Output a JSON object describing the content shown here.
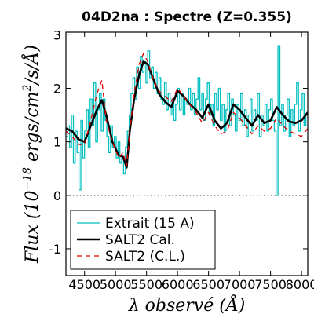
{
  "chart_data": {
    "type": "line",
    "title": "04D2na : Spectre (Z=0.355)",
    "xlabel": "λ observé (Å)",
    "ylabel": "Flux (10^-18 ergs/cm^2/s/Å)",
    "ylabel_parts": {
      "pre": "Flux (10",
      "exp": "−18",
      "post": " ergs/cm",
      "exp2": "2",
      "post2": "/s/Å)"
    },
    "xlim": [
      4200,
      8100
    ],
    "ylim": [
      -1.5,
      3.05
    ],
    "xticks": [
      4500,
      5000,
      5500,
      6000,
      6500,
      7000,
      7500,
      8000
    ],
    "xtick_labels": [
      "4500",
      "5000",
      "5500",
      "6000",
      "6500",
      "7000",
      "7500",
      "8000"
    ],
    "yticks": [
      -1,
      0,
      1,
      2,
      3
    ],
    "ytick_labels": [
      "-1",
      "0",
      "1",
      "2",
      "3"
    ],
    "zero_line": {
      "y": 0,
      "style": "dotted"
    },
    "legend": {
      "position": "lower-left",
      "entries": [
        "Extrait (15 A)",
        "SALT2 Cal.",
        "SALT2 (C.L.)"
      ]
    },
    "series": [
      {
        "name": "Extrait (15 A)",
        "color": "#00bfbf",
        "style": "steps",
        "x": [
          4200,
          4230,
          4260,
          4290,
          4320,
          4350,
          4380,
          4410,
          4440,
          4470,
          4500,
          4530,
          4560,
          4590,
          4620,
          4650,
          4680,
          4710,
          4740,
          4770,
          4800,
          4830,
          4860,
          4890,
          4920,
          4950,
          4980,
          5010,
          5040,
          5070,
          5100,
          5130,
          5160,
          5190,
          5220,
          5250,
          5280,
          5310,
          5340,
          5370,
          5400,
          5430,
          5460,
          5490,
          5520,
          5550,
          5580,
          5610,
          5640,
          5670,
          5700,
          5730,
          5760,
          5790,
          5820,
          5850,
          5880,
          5910,
          5940,
          5970,
          6000,
          6030,
          6060,
          6090,
          6120,
          6150,
          6180,
          6210,
          6240,
          6270,
          6300,
          6330,
          6360,
          6390,
          6420,
          6450,
          6480,
          6510,
          6540,
          6570,
          6600,
          6630,
          6660,
          6690,
          6720,
          6750,
          6780,
          6810,
          6840,
          6870,
          6900,
          6930,
          6960,
          6990,
          7020,
          7050,
          7080,
          7110,
          7140,
          7170,
          7200,
          7230,
          7260,
          7290,
          7320,
          7350,
          7380,
          7410,
          7440,
          7470,
          7500,
          7530,
          7560,
          7590,
          7620,
          7650,
          7680,
          7710,
          7740,
          7770,
          7800,
          7830,
          7860,
          7890,
          7920,
          7950,
          7980,
          8010,
          8040,
          8070
        ],
        "y": [
          1.1,
          1.3,
          0.9,
          1.5,
          0.6,
          1.2,
          0.8,
          0.1,
          1.4,
          0.7,
          1.2,
          1.6,
          0.9,
          1.8,
          1.3,
          2.1,
          1.0,
          1.6,
          1.9,
          1.2,
          1.8,
          1.4,
          1.1,
          0.8,
          1.3,
          0.9,
          1.1,
          0.7,
          1.0,
          0.6,
          0.7,
          0.4,
          0.9,
          1.2,
          1.5,
          1.9,
          2.2,
          1.8,
          2.4,
          2.0,
          2.6,
          2.3,
          2.5,
          2.1,
          2.7,
          2.2,
          2.4,
          2.0,
          2.3,
          1.9,
          2.2,
          1.8,
          1.7,
          2.1,
          1.6,
          1.9,
          1.5,
          1.8,
          1.4,
          1.7,
          2.0,
          1.6,
          1.9,
          1.5,
          1.8,
          1.7,
          2.0,
          1.6,
          1.9,
          1.5,
          1.8,
          2.2,
          1.6,
          1.9,
          1.4,
          1.8,
          2.1,
          1.5,
          1.7,
          1.3,
          1.9,
          1.6,
          2.0,
          1.4,
          1.7,
          1.2,
          1.6,
          1.9,
          1.3,
          1.8,
          1.5,
          1.2,
          1.7,
          1.4,
          1.9,
          1.3,
          1.6,
          1.1,
          1.5,
          1.8,
          1.2,
          1.6,
          1.4,
          1.9,
          1.1,
          1.5,
          1.3,
          1.7,
          1.2,
          1.6,
          1.8,
          1.4,
          1.2,
          0.0,
          2.8,
          1.3,
          1.7,
          1.2,
          1.5,
          1.8,
          1.1,
          1.6,
          1.3,
          1.7,
          2.1,
          1.2,
          1.6,
          1.9,
          1.3,
          1.5
        ]
      },
      {
        "name": "SALT2 Cal.",
        "color": "#000000",
        "style": "line",
        "x": [
          4200,
          4300,
          4400,
          4500,
          4600,
          4700,
          4780,
          4850,
          4950,
          5050,
          5120,
          5180,
          5230,
          5300,
          5380,
          5450,
          5520,
          5600,
          5700,
          5800,
          5900,
          6000,
          6100,
          6200,
          6300,
          6400,
          6500,
          6600,
          6700,
          6800,
          6900,
          7000,
          7100,
          7200,
          7300,
          7400,
          7500,
          7600,
          7700,
          7800,
          7900,
          8000,
          8100
        ],
        "y": [
          1.25,
          1.2,
          1.05,
          1.0,
          1.3,
          1.6,
          1.78,
          1.5,
          1.0,
          0.75,
          0.72,
          0.52,
          1.2,
          1.8,
          2.25,
          2.5,
          2.45,
          2.2,
          1.9,
          1.75,
          1.65,
          1.95,
          1.85,
          1.7,
          1.6,
          1.45,
          1.7,
          1.4,
          1.25,
          1.35,
          1.7,
          1.6,
          1.45,
          1.3,
          1.5,
          1.35,
          1.4,
          1.65,
          1.5,
          1.38,
          1.35,
          1.4,
          1.55
        ]
      },
      {
        "name": "SALT2 (C.L.)",
        "color": "#dd0000",
        "style": "dashed",
        "x": [
          4200,
          4300,
          4400,
          4500,
          4600,
          4700,
          4780,
          4850,
          4950,
          5050,
          5120,
          5180,
          5230,
          5300,
          5380,
          5450,
          5520,
          5600,
          5700,
          5800,
          5900,
          6000,
          6100,
          6200,
          6300,
          6400,
          6500,
          6600,
          6700,
          6800,
          6900,
          7000,
          7100,
          7200,
          7300,
          7400,
          7500,
          7600,
          7700,
          7800,
          7900,
          8000,
          8100
        ],
        "y": [
          1.2,
          1.1,
          0.95,
          0.95,
          1.4,
          1.9,
          2.15,
          1.4,
          1.0,
          0.7,
          0.8,
          0.55,
          1.2,
          1.9,
          2.45,
          2.65,
          2.5,
          2.2,
          1.95,
          1.85,
          1.75,
          2.0,
          1.85,
          1.7,
          1.55,
          1.35,
          1.55,
          1.3,
          1.15,
          1.2,
          1.55,
          1.45,
          1.3,
          1.15,
          1.3,
          1.2,
          1.25,
          1.45,
          1.3,
          1.2,
          1.15,
          1.1,
          1.25
        ]
      }
    ]
  }
}
